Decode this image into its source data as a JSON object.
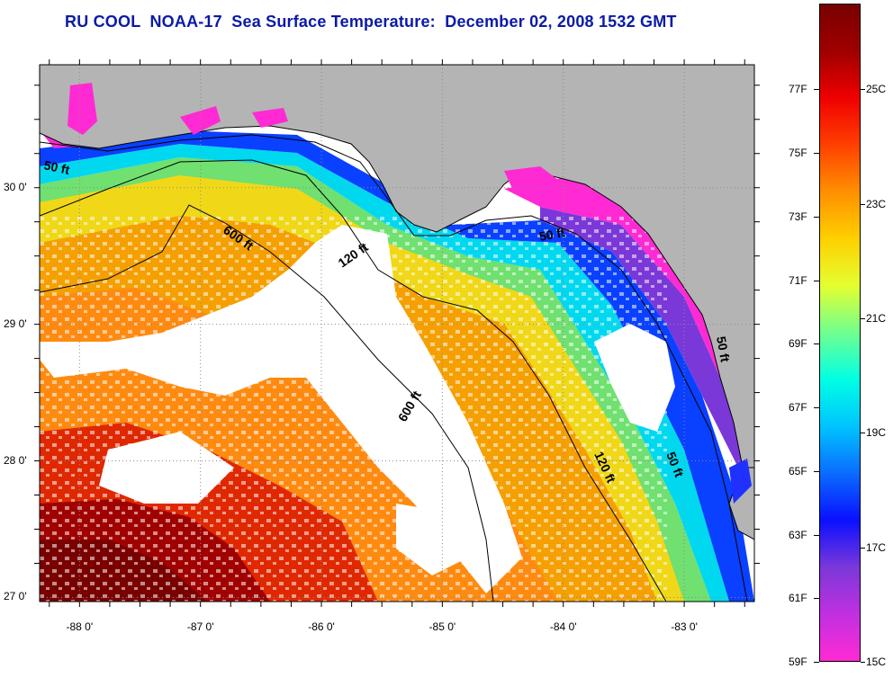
{
  "title": "RU COOL  NOAA-17  Sea Surface Temperature:  December 02, 2008 1532 GMT",
  "map": {
    "lon_range": [
      -88.33,
      -82.42
    ],
    "lat_range": [
      26.97,
      30.9
    ],
    "x_ticks": [
      -88,
      -87,
      -86,
      -85,
      -84,
      -83
    ],
    "x_tick_labels": [
      "-88 0'",
      "-87 0'",
      "-86 0'",
      "-85 0'",
      "-84 0'",
      "-83 0'"
    ],
    "y_ticks": [
      27,
      28,
      29,
      30
    ],
    "y_tick_labels": [
      "27 0'",
      "28 0'",
      "29 0'",
      "30 0'"
    ],
    "contour_labels": [
      "50 ft",
      "600 ft",
      "120 ft",
      "50 ft",
      "600 ft",
      "120 ft",
      "50 ft",
      "50 ft"
    ],
    "colors": {
      "land": "#b4b4b4",
      "no_data": "#ffffff",
      "grid": "#8c8c8c"
    }
  },
  "colorbar": {
    "range_c": [
      15,
      26.5
    ],
    "fahrenheit_labels": [
      "77F",
      "75F",
      "73F",
      "71F",
      "69F",
      "67F",
      "65F",
      "63F",
      "61F",
      "59F"
    ],
    "celsius_labels": [
      "25C",
      "23C",
      "21C",
      "19C",
      "17C",
      "15C"
    ],
    "colors_low_to_high": [
      "#ff2ad4",
      "#c030e0",
      "#7a38d8",
      "#0a10ff",
      "#0a6cff",
      "#00c4ff",
      "#00ffe4",
      "#70ff90",
      "#e4ff30",
      "#ffd000",
      "#ff9000",
      "#ff4000",
      "#f00000",
      "#a00000",
      "#780000"
    ]
  }
}
